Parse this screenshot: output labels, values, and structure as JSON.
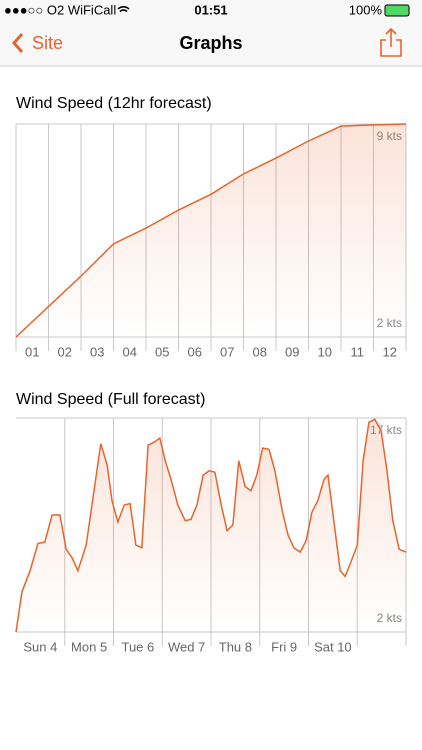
{
  "status_bar": {
    "carrier": "●●●○○ O2 WiFiCall",
    "time": "01:51",
    "battery": "100%"
  },
  "nav": {
    "back": "Site",
    "title": "Graphs"
  },
  "chart_data": [
    {
      "type": "line",
      "title": "Wind Speed (12hr forecast)",
      "color": "#e8642c",
      "x": [
        0,
        1,
        2,
        3,
        4,
        5,
        6,
        7,
        8,
        9,
        10,
        11,
        12
      ],
      "values": [
        2,
        3,
        4,
        5.06,
        5.58,
        6.17,
        6.69,
        7.36,
        7.88,
        8.44,
        8.93,
        8.97,
        9
      ],
      "xlim": [
        0,
        12
      ],
      "xgrid": [
        0,
        1,
        2,
        3,
        4,
        5,
        6,
        7,
        8,
        9,
        10,
        11,
        12
      ],
      "categories": [
        "01",
        "02",
        "03",
        "04",
        "05",
        "06",
        "07",
        "08",
        "09",
        "10",
        "11",
        "12"
      ],
      "ylim": [
        2,
        9
      ],
      "yticks": [
        {
          "value": 9,
          "label": "9 kts"
        },
        {
          "value": 2,
          "label": "2 kts"
        }
      ]
    },
    {
      "type": "line",
      "title": "Wind Speed (Full forecast)",
      "color": "#e8642c",
      "x": [
        0,
        0.12,
        0.29,
        0.45,
        0.59,
        0.74,
        0.9,
        1.03,
        1.15,
        1.27,
        1.44,
        1.6,
        1.74,
        1.87,
        1.97,
        2.09,
        2.22,
        2.34,
        2.46,
        2.58,
        2.71,
        2.83,
        2.95,
        3.06,
        3.18,
        3.32,
        3.47,
        3.59,
        3.71,
        3.84,
        3.96,
        4.08,
        4.21,
        4.33,
        4.45,
        4.57,
        4.7,
        4.82,
        4.94,
        5.06,
        5.19,
        5.31,
        5.46,
        5.58,
        5.7,
        5.83,
        5.95,
        6.07,
        6.19,
        6.32,
        6.4,
        6.52,
        6.65,
        6.75,
        6.87,
        7,
        7.12,
        7.24,
        7.36,
        7.49,
        7.61,
        7.73,
        7.86,
        8
      ],
      "values": [
        2,
        4.8,
        6.3,
        8.2,
        8.3,
        10.2,
        10.2,
        7.8,
        7.2,
        6.3,
        8.1,
        11.9,
        15.2,
        13.7,
        11.2,
        9.7,
        10.9,
        11,
        8.1,
        7.9,
        15.1,
        15.3,
        15.6,
        14,
        12.7,
        10.9,
        9.8,
        9.9,
        10.9,
        13,
        13.3,
        13.2,
        10.9,
        9.1,
        9.5,
        14,
        12.2,
        11.9,
        13,
        14.9,
        14.8,
        13.3,
        10.5,
        8.8,
        7.9,
        7.6,
        8.4,
        10.4,
        11.2,
        12.7,
        13,
        9.8,
        6.3,
        5.9,
        6.9,
        8.1,
        14,
        16.7,
        16.9,
        16.1,
        13.3,
        9.8,
        7.8,
        7.6
      ],
      "xlim": [
        0,
        8
      ],
      "xgrid": [
        1,
        2,
        3,
        4,
        5,
        6,
        7,
        8
      ],
      "categories": [
        "Sun 4",
        "Mon 5",
        "Tue 6",
        "Wed 7",
        "Thu 8",
        "Fri 9",
        "Sat 10",
        null
      ],
      "ylim": [
        2,
        17
      ],
      "yticks": [
        {
          "value": 17,
          "label": "17 kts"
        },
        {
          "value": 2,
          "label": "2 kts"
        }
      ]
    }
  ]
}
